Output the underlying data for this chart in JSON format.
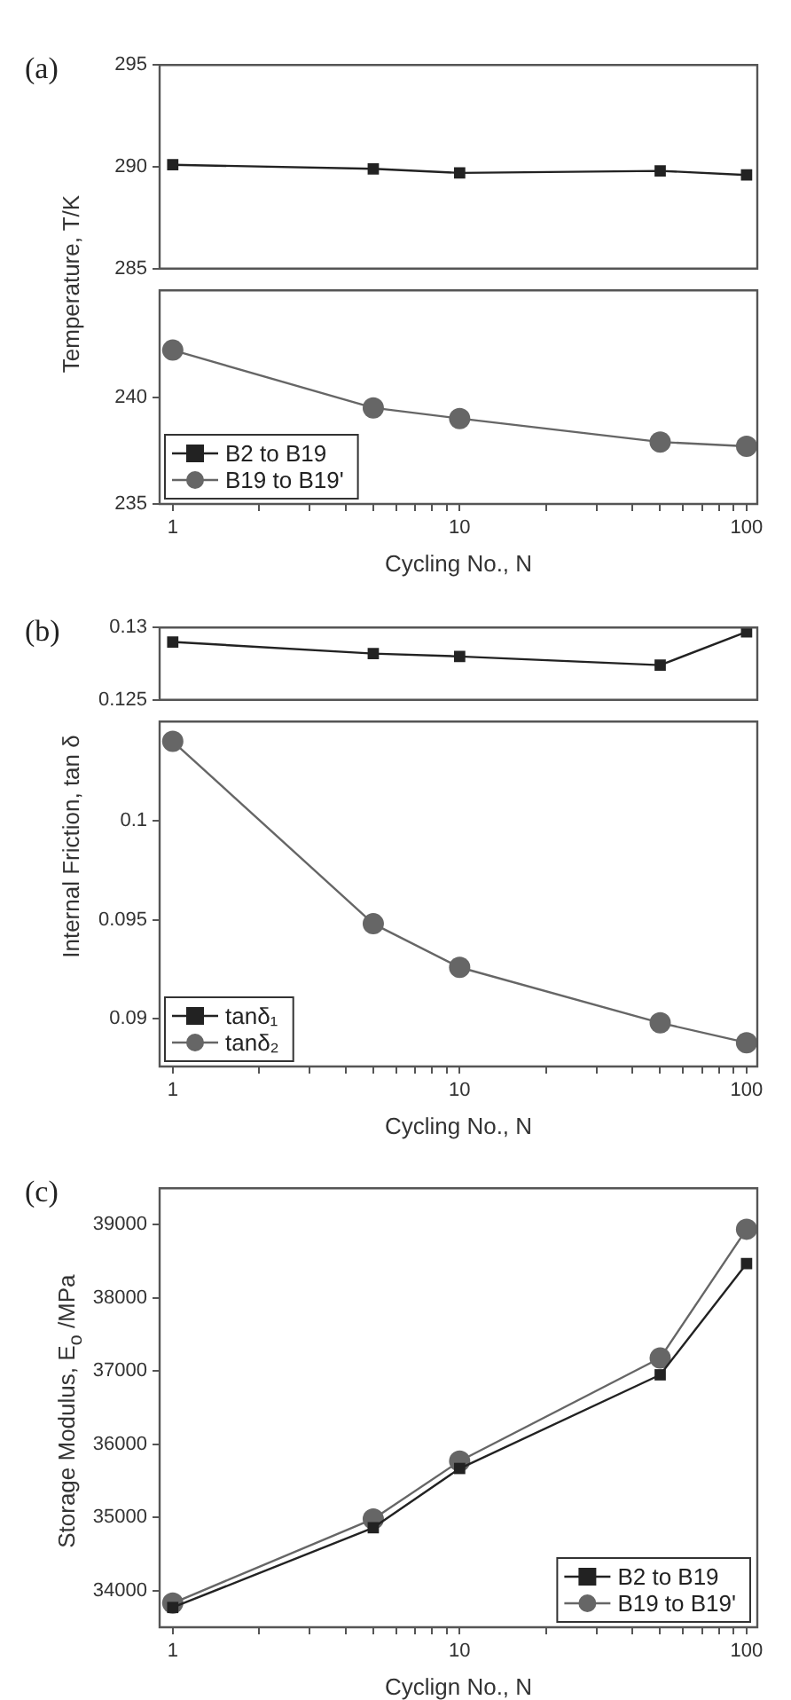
{
  "chart_data": [
    {
      "type": "line",
      "title": "(a)",
      "x": [
        1,
        5,
        10,
        50,
        100
      ],
      "xlim": [
        0.9,
        109
      ],
      "ylim": [
        285,
        295
      ],
      "yticks": [
        285,
        290,
        295
      ],
      "log": "x",
      "tick_labels": "y",
      "series": [
        {
          "color": "#222222",
          "marker": "square",
          "values": [
            290.1,
            289.9,
            289.7,
            289.8,
            289.6
          ]
        }
      ]
    },
    {
      "type": "line",
      "ylabel": "Temperature, T/K",
      "xlabel": "Cycling No., N",
      "x": [
        1,
        5,
        10,
        50,
        100
      ],
      "xlim": [
        0.9,
        109
      ],
      "xticks": [
        1,
        {
          "value": 2,
          "label": null
        },
        {
          "value": 3,
          "label": null
        },
        {
          "value": 4,
          "label": null
        },
        {
          "value": 5,
          "label": null
        },
        {
          "value": 6,
          "label": null
        },
        {
          "value": 7,
          "label": null
        },
        {
          "value": 8,
          "label": null
        },
        {
          "value": 9,
          "label": null
        },
        10,
        {
          "value": 20,
          "label": null
        },
        {
          "value": 30,
          "label": null
        },
        {
          "value": 40,
          "label": null
        },
        {
          "value": 50,
          "label": null
        },
        {
          "value": 60,
          "label": null
        },
        {
          "value": 70,
          "label": null
        },
        {
          "value": 80,
          "label": null
        },
        {
          "value": 90,
          "label": null
        },
        100
      ],
      "ylim": [
        235,
        245
      ],
      "yticks": [
        235,
        240
      ],
      "log": "x",
      "legend": "bottom left",
      "series": [
        {
          "name": "B2 to B19",
          "color": "#222222",
          "marker": "square",
          "values": [
            null,
            null,
            null,
            null,
            null
          ]
        },
        {
          "name": "B19 to B19'",
          "color": "#666666",
          "marker": "circle",
          "values": [
            242.2,
            239.5,
            239.0,
            237.9,
            237.7
          ]
        }
      ]
    },
    {
      "type": "line",
      "title": "(b)",
      "x": [
        1,
        5,
        10,
        50,
        100
      ],
      "xlim": [
        0.9,
        109
      ],
      "ylim": [
        0.125,
        0.13
      ],
      "yticks": [
        0.125,
        0.13
      ],
      "log": "x",
      "tick_labels": "y",
      "series": [
        {
          "color": "#222222",
          "marker": "square",
          "values": [
            0.129,
            0.1282,
            0.128,
            0.1274,
            0.1297
          ]
        }
      ]
    },
    {
      "type": "line",
      "ylabel": "Internal Friction, tan δ",
      "xlabel": "Cycling No., N",
      "x": [
        1,
        5,
        10,
        50,
        100
      ],
      "xlim": [
        0.9,
        109
      ],
      "xticks": [
        1,
        {
          "value": 2,
          "label": null
        },
        {
          "value": 3,
          "label": null
        },
        {
          "value": 4,
          "label": null
        },
        {
          "value": 5,
          "label": null
        },
        {
          "value": 6,
          "label": null
        },
        {
          "value": 7,
          "label": null
        },
        {
          "value": 8,
          "label": null
        },
        {
          "value": 9,
          "label": null
        },
        10,
        {
          "value": 20,
          "label": null
        },
        {
          "value": 30,
          "label": null
        },
        {
          "value": 40,
          "label": null
        },
        {
          "value": 50,
          "label": null
        },
        {
          "value": 60,
          "label": null
        },
        {
          "value": 70,
          "label": null
        },
        {
          "value": 80,
          "label": null
        },
        {
          "value": 90,
          "label": null
        },
        100
      ],
      "ylim": [
        0.0876,
        0.105
      ],
      "yticks": [
        0.09,
        0.095,
        0.1
      ],
      "log": "x",
      "legend": "bottom left",
      "series": [
        {
          "name": "tanδ₁",
          "color": "#222222",
          "marker": "square",
          "values": [
            null,
            null,
            null,
            null,
            null
          ]
        },
        {
          "name": "tanδ₂",
          "color": "#666666",
          "marker": "circle",
          "values": [
            0.104,
            0.0948,
            0.0926,
            0.0898,
            0.0888
          ]
        }
      ]
    },
    {
      "type": "line",
      "title": "(c)",
      "ylabel": "Storage Modulus, E$_{o}$ /MPa",
      "xlabel": "Cyclign No., N",
      "x": [
        1,
        5,
        10,
        50,
        100
      ],
      "xlim": [
        0.9,
        109
      ],
      "xticks": [
        1,
        {
          "value": 2,
          "label": null
        },
        {
          "value": 3,
          "label": null
        },
        {
          "value": 4,
          "label": null
        },
        {
          "value": 5,
          "label": null
        },
        {
          "value": 6,
          "label": null
        },
        {
          "value": 7,
          "label": null
        },
        {
          "value": 8,
          "label": null
        },
        {
          "value": 9,
          "label": null
        },
        10,
        {
          "value": 20,
          "label": null
        },
        {
          "value": 30,
          "label": null
        },
        {
          "value": 40,
          "label": null
        },
        {
          "value": 50,
          "label": null
        },
        {
          "value": 60,
          "label": null
        },
        {
          "value": 70,
          "label": null
        },
        {
          "value": 80,
          "label": null
        },
        {
          "value": 90,
          "label": null
        },
        100
      ],
      "ylim": [
        33500,
        39500
      ],
      "yticks": [
        34000,
        35000,
        36000,
        37000,
        38000,
        39000
      ],
      "log": "x",
      "legend": "bottom right",
      "series": [
        {
          "name": "B2 to B19",
          "color": "#222222",
          "marker": "square",
          "values": [
            33770,
            34860,
            35670,
            36950,
            38470
          ]
        },
        {
          "name": "B19 to B19'",
          "color": "#666666",
          "marker": "circle",
          "values": [
            33830,
            34980,
            35770,
            37180,
            38940
          ]
        }
      ]
    }
  ]
}
